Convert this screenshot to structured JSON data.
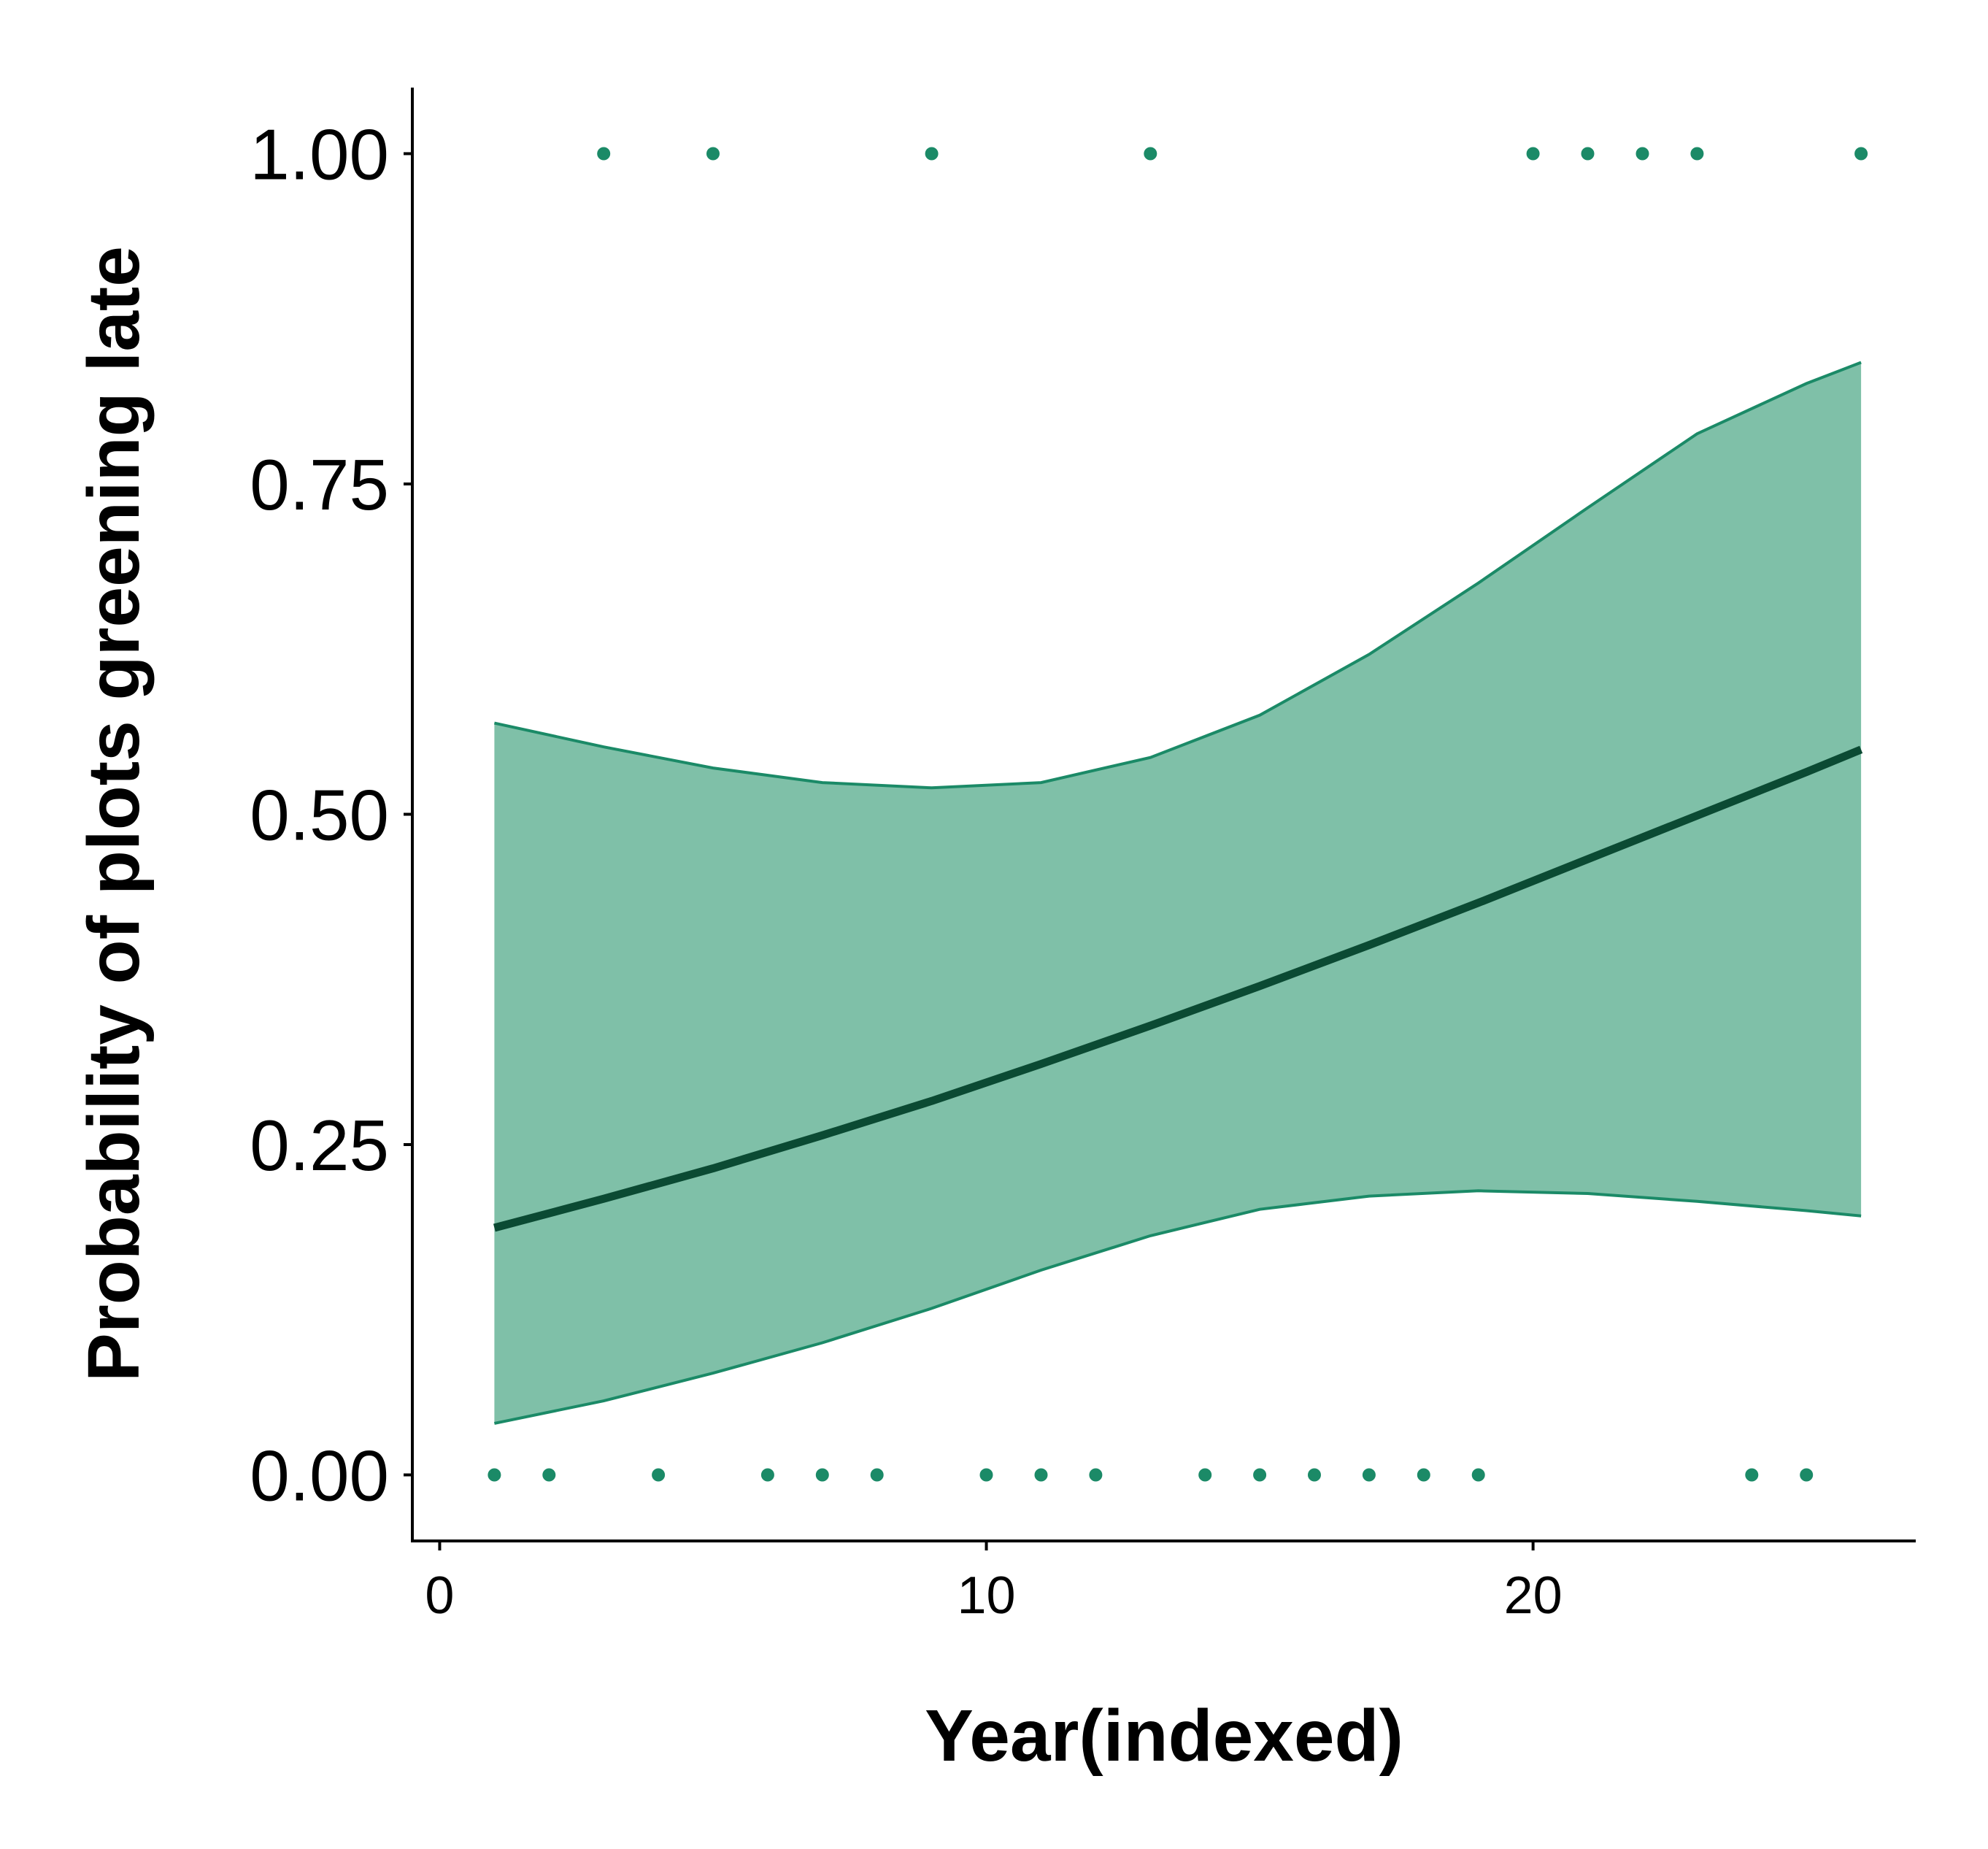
{
  "chart_data": {
    "type": "line",
    "title": "",
    "xlabel": "Year(indexed)",
    "ylabel": "Probability of plots greening late",
    "xlim": [
      -0.5,
      27
    ],
    "ylim": [
      -0.05,
      1.05
    ],
    "x_ticks": [
      0,
      10,
      20
    ],
    "x_tick_labels": [
      "0",
      "10",
      "20"
    ],
    "y_ticks": [
      0,
      0.25,
      0.5,
      0.75,
      1
    ],
    "y_tick_labels": [
      "0.00",
      "0.25",
      "0.50",
      "0.75",
      "1.00"
    ],
    "grid": false,
    "legend": "none",
    "colors": {
      "points": "#1b8a67",
      "ribbon_fill": "#7fc0a8",
      "ribbon_edge": "#1b8a67",
      "fit_line": "#0b4a33"
    },
    "points": {
      "x": [
        3,
        5,
        9,
        13,
        20,
        21,
        22,
        23,
        26,
        1,
        2,
        4,
        6,
        7,
        8,
        10,
        11,
        12,
        14,
        15,
        16,
        17,
        18,
        19,
        24,
        25
      ],
      "y": [
        1,
        1,
        1,
        1,
        1,
        1,
        1,
        1,
        1,
        0,
        0,
        0,
        0,
        0,
        0,
        0,
        0,
        0,
        0,
        0,
        0,
        0,
        0,
        0,
        0,
        0
      ]
    },
    "fit": {
      "x": [
        1,
        3,
        5,
        7,
        9,
        11,
        13,
        15,
        17,
        19,
        21,
        23,
        25,
        26
      ],
      "y": [
        0.187,
        0.209,
        0.232,
        0.257,
        0.283,
        0.311,
        0.34,
        0.37,
        0.401,
        0.433,
        0.466,
        0.499,
        0.532,
        0.549
      ]
    },
    "ci_upper": {
      "x": [
        1,
        3,
        5,
        7,
        9,
        11,
        13,
        15,
        17,
        19,
        21,
        23,
        25,
        26
      ],
      "y": [
        0.569,
        0.551,
        0.535,
        0.524,
        0.52,
        0.524,
        0.543,
        0.575,
        0.621,
        0.675,
        0.732,
        0.788,
        0.826,
        0.842
      ]
    },
    "ci_lower": {
      "x": [
        1,
        3,
        5,
        7,
        9,
        11,
        13,
        15,
        17,
        19,
        21,
        23,
        25,
        26
      ],
      "y": [
        0.039,
        0.056,
        0.077,
        0.1,
        0.126,
        0.155,
        0.181,
        0.201,
        0.211,
        0.215,
        0.213,
        0.207,
        0.2,
        0.196
      ]
    }
  }
}
